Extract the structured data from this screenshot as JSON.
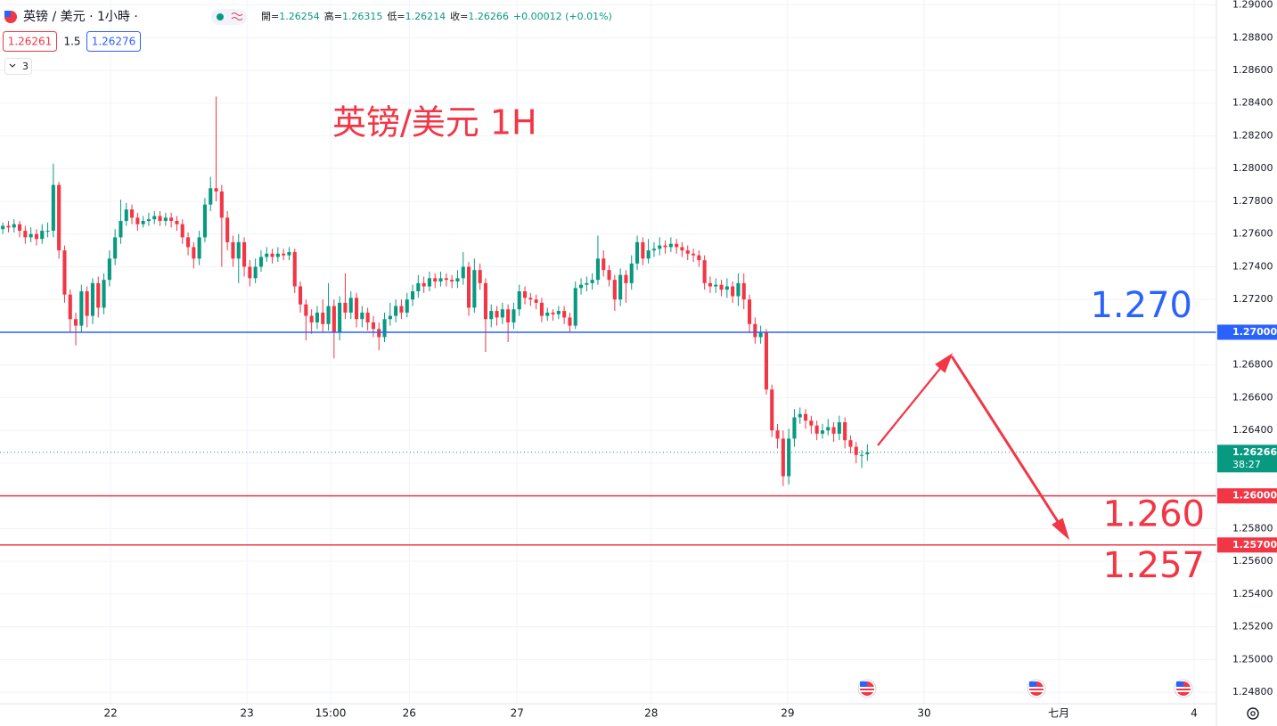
{
  "chart_data": {
    "type": "candlestick",
    "title": "英镑/美元 1H",
    "symbol": "英镑 / 美元 · 1小時 ·",
    "ohlc_labels": [
      "開=",
      "高=",
      "低=",
      "收="
    ],
    "change": "+0.00012 (+0.01%)",
    "bid": 1.26261,
    "spread": 1.5,
    "ask": 1.26276,
    "indicators": 3,
    "countdown": "38:27",
    "up_color": "#089981",
    "down_color": "#f23645",
    "grid": true,
    "xlim": [
      -0.5,
      216.17
    ],
    "ylim": [
      1.2473,
      1.2903
    ],
    "xticks": [
      {
        "value": 19.2,
        "label": "22"
      },
      {
        "value": 43.5,
        "label": "23"
      },
      {
        "value": 58.4,
        "label": "15:00"
      },
      {
        "value": 72.4,
        "label": "26"
      },
      {
        "value": 91.6,
        "label": "27"
      },
      {
        "value": 115.5,
        "label": "28"
      },
      {
        "value": 139.8,
        "label": "29"
      },
      {
        "value": 164.1,
        "label": "30"
      },
      {
        "value": 188.1,
        "label": "七月"
      },
      {
        "value": 212.2,
        "label": "4"
      }
    ],
    "yticks": [
      {
        "value": 1.29,
        "label": "1.29000"
      },
      {
        "value": 1.288,
        "label": "1.28800"
      },
      {
        "value": 1.286,
        "label": "1.28600"
      },
      {
        "value": 1.284,
        "label": "1.28400"
      },
      {
        "value": 1.282,
        "label": "1.28200"
      },
      {
        "value": 1.28,
        "label": "1.28000"
      },
      {
        "value": 1.278,
        "label": "1.27800"
      },
      {
        "value": 1.276,
        "label": "1.27600"
      },
      {
        "value": 1.274,
        "label": "1.27400"
      },
      {
        "value": 1.272,
        "label": "1.27200"
      },
      {
        "value": 1.27,
        "label": "1.27000"
      },
      {
        "value": 1.268,
        "label": "1.26800"
      },
      {
        "value": 1.266,
        "label": "1.26600"
      },
      {
        "value": 1.264,
        "label": "1.26400"
      },
      {
        "value": 1.262,
        "label": "1.26200"
      },
      {
        "value": 1.26,
        "label": "1.26000"
      },
      {
        "value": 1.258,
        "label": "1.25800"
      },
      {
        "value": 1.256,
        "label": "1.25600"
      },
      {
        "value": 1.254,
        "label": "1.25400"
      },
      {
        "value": 1.252,
        "label": "1.25200"
      },
      {
        "value": 1.25,
        "label": "1.25000"
      },
      {
        "value": 1.248,
        "label": "1.24800"
      }
    ],
    "levels": [
      {
        "value": 1.27,
        "label": "1.27000",
        "text": "1.270",
        "color": "#2962ff"
      },
      {
        "value": 1.26,
        "label": "1.26000",
        "text": "1.260",
        "color": "#f23645"
      },
      {
        "value": 1.257,
        "label": "1.25700",
        "text": "1.257",
        "color": "#f23645"
      }
    ],
    "open": [
      1.2763,
      1.2765,
      1.2764,
      1.2766,
      1.2762,
      1.2758,
      1.276,
      1.2757,
      1.2762,
      1.2762,
      1.279,
      1.275,
      1.2723,
      1.2708,
      1.2704,
      1.2725,
      1.271,
      1.273,
      1.2715,
      1.2732,
      1.2745,
      1.2758,
      1.2768,
      1.2775,
      1.277,
      1.2766,
      1.2768,
      1.2769,
      1.2771,
      1.2768,
      1.277,
      1.2768,
      1.2766,
      1.2758,
      1.2752,
      1.2745,
      1.2758,
      1.2778,
      1.2788,
      1.2786,
      1.277,
      1.2755,
      1.2745,
      1.2755,
      1.274,
      1.2733,
      1.274,
      1.2746,
      1.2748,
      1.2746,
      1.2748,
      1.2747,
      1.2749,
      1.2728,
      1.2717,
      1.271,
      1.2706,
      1.2712,
      1.2705,
      1.2716,
      1.27,
      1.2718,
      1.2712,
      1.2721,
      1.2708,
      1.2712,
      1.2706,
      1.2702,
      1.2697,
      1.2708,
      1.271,
      1.2716,
      1.2712,
      1.272,
      1.2725,
      1.273,
      1.2728,
      1.2733,
      1.2731,
      1.2733,
      1.2732,
      1.2731,
      1.2733,
      1.274,
      1.2715,
      1.2738,
      1.273,
      1.2708,
      1.2713,
      1.2709,
      1.2714,
      1.2706,
      1.2714,
      1.2725,
      1.2721,
      1.272,
      1.2718,
      1.271,
      1.2712,
      1.2711,
      1.2713,
      1.2709,
      1.2704,
      1.2727,
      1.2729,
      1.273,
      1.2732,
      1.2745,
      1.2738,
      1.2732,
      1.272,
      1.2735,
      1.273,
      1.2742,
      1.2755,
      1.2745,
      1.275,
      1.2751,
      1.2753,
      1.2752,
      1.2754,
      1.2752,
      1.275,
      1.2748,
      1.2747,
      1.2744,
      1.273,
      1.2728,
      1.2729,
      1.2726,
      1.2728,
      1.2722,
      1.273,
      1.272,
      1.2705,
      1.2697,
      1.27,
      1.2665,
      1.264,
      1.2635,
      1.2612,
      1.2635,
      1.2648,
      1.265,
      1.2646,
      1.2643,
      1.2638,
      1.264,
      1.2642,
      1.2638,
      1.2645,
      1.2634,
      1.263,
      1.2625,
      1.26254
    ],
    "high": [
      1.2767,
      1.2768,
      1.2769,
      1.2768,
      1.2765,
      1.2764,
      1.2763,
      1.2766,
      1.2767,
      1.2803,
      1.2792,
      1.2753,
      1.2726,
      1.2712,
      1.2729,
      1.2728,
      1.2733,
      1.2734,
      1.2736,
      1.275,
      1.2763,
      1.2781,
      1.2779,
      1.2778,
      1.2773,
      1.2771,
      1.2773,
      1.2774,
      1.2774,
      1.2773,
      1.2773,
      1.2771,
      1.2769,
      1.2761,
      1.2755,
      1.2762,
      1.2782,
      1.2795,
      1.2844,
      1.279,
      1.2774,
      1.2759,
      1.276,
      1.2758,
      1.2744,
      1.2745,
      1.275,
      1.2752,
      1.2751,
      1.2752,
      1.2751,
      1.2752,
      1.2751,
      1.2731,
      1.272,
      1.2714,
      1.2716,
      1.272,
      1.273,
      1.272,
      1.2722,
      1.2736,
      1.2725,
      1.2724,
      1.2716,
      1.2715,
      1.271,
      1.2706,
      1.2712,
      1.2718,
      1.272,
      1.272,
      1.2724,
      1.2729,
      1.2735,
      1.2734,
      1.2737,
      1.2736,
      1.2737,
      1.2736,
      1.2735,
      1.2738,
      1.2749,
      1.2743,
      1.2745,
      1.2742,
      1.2733,
      1.2717,
      1.2716,
      1.2718,
      1.2717,
      1.2718,
      1.2729,
      1.2728,
      1.2724,
      1.2723,
      1.2721,
      1.2715,
      1.2714,
      1.2716,
      1.2716,
      1.2712,
      1.2731,
      1.2733,
      1.2734,
      1.2736,
      1.2759,
      1.275,
      1.2741,
      1.2735,
      1.2739,
      1.2738,
      1.2747,
      1.2759,
      1.2758,
      1.2757,
      1.2755,
      1.2758,
      1.2756,
      1.2758,
      1.2757,
      1.2755,
      1.2753,
      1.2751,
      1.275,
      1.2747,
      1.2734,
      1.2733,
      1.2732,
      1.2733,
      1.2731,
      1.2736,
      1.2736,
      1.2723,
      1.2709,
      1.2704,
      1.2702,
      1.2668,
      1.2644,
      1.264,
      1.2641,
      1.2653,
      1.2654,
      1.2653,
      1.2649,
      1.2646,
      1.2644,
      1.2647,
      1.2645,
      1.2649,
      1.2648,
      1.2637,
      1.2633,
      1.2628,
      1.26315
    ],
    "low": [
      1.276,
      1.2761,
      1.2761,
      1.2758,
      1.2754,
      1.2755,
      1.2753,
      1.2754,
      1.2758,
      1.2758,
      1.2745,
      1.2718,
      1.27,
      1.2692,
      1.27,
      1.2703,
      1.2705,
      1.2709,
      1.2711,
      1.2728,
      1.2741,
      1.2754,
      1.2765,
      1.2766,
      1.2762,
      1.2764,
      1.2765,
      1.2766,
      1.2765,
      1.2765,
      1.2764,
      1.2762,
      1.2754,
      1.2747,
      1.2739,
      1.2741,
      1.2755,
      1.2774,
      1.278,
      1.274,
      1.275,
      1.274,
      1.273,
      1.2734,
      1.2728,
      1.273,
      1.2737,
      1.2743,
      1.2742,
      1.2743,
      1.2744,
      1.2744,
      1.2724,
      1.2712,
      1.2695,
      1.2699,
      1.2702,
      1.27,
      1.2701,
      1.2684,
      1.2695,
      1.2708,
      1.2708,
      1.2703,
      1.2703,
      1.2701,
      1.2697,
      1.2689,
      1.2694,
      1.2704,
      1.2706,
      1.2708,
      1.2709,
      1.2716,
      1.2721,
      1.2724,
      1.2725,
      1.2727,
      1.2728,
      1.2728,
      1.2727,
      1.2727,
      1.2729,
      1.271,
      1.2712,
      1.2726,
      1.2688,
      1.2703,
      1.2704,
      1.2705,
      1.2694,
      1.2702,
      1.271,
      1.2717,
      1.2716,
      1.2714,
      1.2706,
      1.2707,
      1.2707,
      1.2708,
      1.2705,
      1.27,
      1.2702,
      1.2723,
      1.2725,
      1.2726,
      1.2729,
      1.2734,
      1.2728,
      1.2713,
      1.2716,
      1.2718,
      1.2726,
      1.2738,
      1.2741,
      1.2742,
      1.2746,
      1.2747,
      1.2748,
      1.2749,
      1.2748,
      1.2746,
      1.2744,
      1.2743,
      1.274,
      1.2726,
      1.2724,
      1.2724,
      1.2722,
      1.2721,
      1.2718,
      1.2716,
      1.2714,
      1.27,
      1.2693,
      1.2693,
      1.2662,
      1.2636,
      1.2629,
      1.2606,
      1.2607,
      1.263,
      1.2644,
      1.2641,
      1.2638,
      1.2634,
      1.2635,
      1.2637,
      1.2633,
      1.2634,
      1.2629,
      1.2626,
      1.262,
      1.2617,
      1.26214
    ],
    "close": [
      1.2765,
      1.2764,
      1.2766,
      1.2762,
      1.2758,
      1.276,
      1.2757,
      1.2762,
      1.2762,
      1.279,
      1.275,
      1.2723,
      1.2708,
      1.2704,
      1.2725,
      1.271,
      1.273,
      1.2715,
      1.2732,
      1.2745,
      1.2758,
      1.2768,
      1.2775,
      1.277,
      1.2766,
      1.2768,
      1.2769,
      1.2771,
      1.2768,
      1.277,
      1.2768,
      1.2766,
      1.2758,
      1.2752,
      1.2745,
      1.2758,
      1.2778,
      1.2788,
      1.2786,
      1.277,
      1.2755,
      1.2745,
      1.2755,
      1.274,
      1.2733,
      1.274,
      1.2746,
      1.2748,
      1.2746,
      1.2748,
      1.2747,
      1.2749,
      1.2728,
      1.2717,
      1.271,
      1.2706,
      1.2712,
      1.2705,
      1.2716,
      1.27,
      1.2718,
      1.2712,
      1.2721,
      1.2708,
      1.2712,
      1.2706,
      1.2702,
      1.2697,
      1.2708,
      1.271,
      1.2716,
      1.2712,
      1.272,
      1.2725,
      1.273,
      1.2728,
      1.2733,
      1.2731,
      1.2733,
      1.2732,
      1.2731,
      1.2733,
      1.274,
      1.2715,
      1.2738,
      1.273,
      1.2708,
      1.2713,
      1.2709,
      1.2714,
      1.2706,
      1.2714,
      1.2725,
      1.2721,
      1.272,
      1.2718,
      1.271,
      1.2712,
      1.2711,
      1.2713,
      1.2709,
      1.2704,
      1.2727,
      1.2729,
      1.273,
      1.2732,
      1.2745,
      1.2738,
      1.2732,
      1.272,
      1.2735,
      1.273,
      1.2742,
      1.2755,
      1.2745,
      1.275,
      1.2751,
      1.2753,
      1.2752,
      1.2754,
      1.2752,
      1.275,
      1.2748,
      1.2747,
      1.2744,
      1.273,
      1.2728,
      1.2729,
      1.2726,
      1.2728,
      1.2722,
      1.273,
      1.272,
      1.2705,
      1.2697,
      1.27,
      1.2665,
      1.264,
      1.2635,
      1.2612,
      1.2635,
      1.2648,
      1.265,
      1.2646,
      1.2643,
      1.2638,
      1.264,
      1.2642,
      1.2638,
      1.2645,
      1.2634,
      1.263,
      1.2625,
      1.2625,
      1.26266
    ]
  }
}
